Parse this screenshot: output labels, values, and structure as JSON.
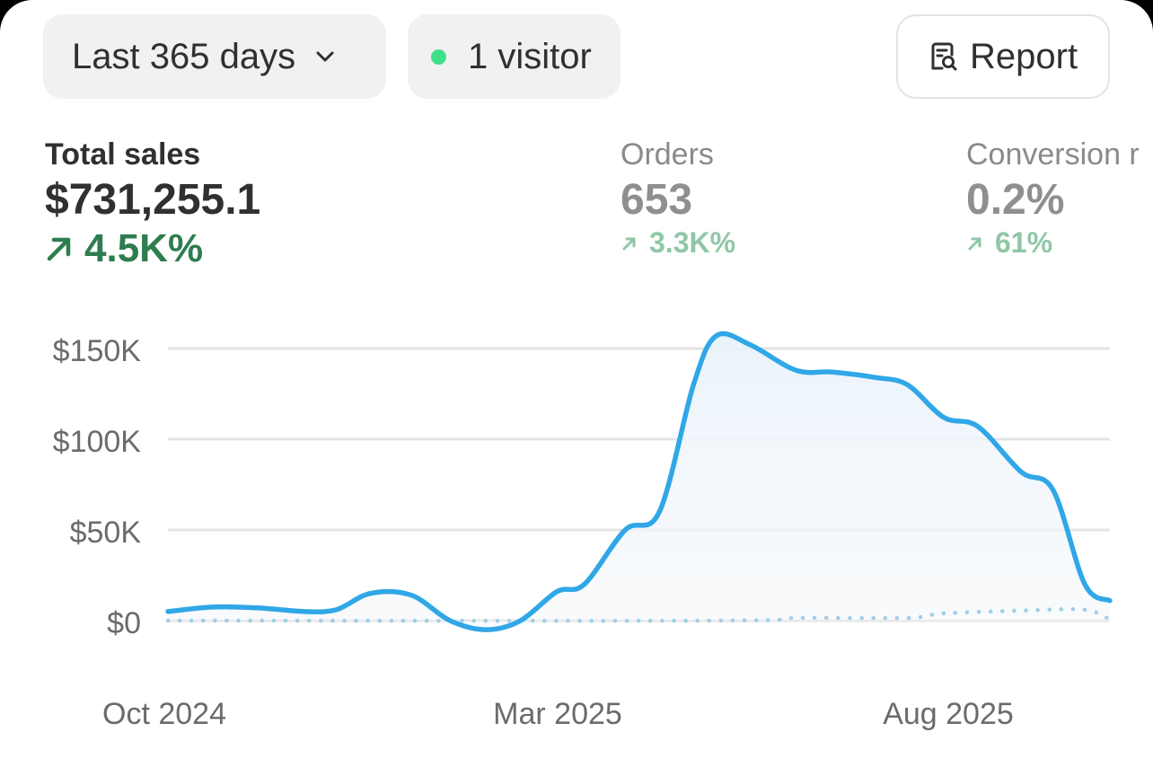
{
  "filters": {
    "date_range_label": "Last 365 days",
    "visitors_label": "1 visitor",
    "report_label": "Report"
  },
  "metrics": [
    {
      "label": "Total sales",
      "value": "$731,255.1",
      "delta": "4.5K%"
    },
    {
      "label": "Orders",
      "value": "653",
      "delta": "3.3K%"
    },
    {
      "label": "Conversion r",
      "value": "0.2%",
      "delta": "61%"
    }
  ],
  "colors": {
    "accent_line": "#30a7e7",
    "live_dot": "#3fe08a",
    "positive": "#2e7d4f",
    "positive_muted": "#8fc7a6",
    "comparison_line": "#9fcfe8"
  },
  "icons": {
    "date": "chevron-down-icon",
    "visitor": "live-dot-icon",
    "report": "report-search-icon",
    "delta": "arrow-up-right-icon"
  },
  "chart_data": {
    "type": "area",
    "x_ticks": [
      "Oct 2024",
      "Mar 2025",
      "Aug 2025"
    ],
    "y_ticks": [
      "$150K",
      "$100K",
      "$50K",
      "$0"
    ],
    "y_tick_values": [
      150000,
      100000,
      50000,
      0
    ],
    "ylim": [
      -8000,
      150000
    ],
    "grid": true,
    "series": [
      {
        "points": [
          [
            "2024-09-12",
            5000
          ],
          [
            "2024-10-02",
            7500
          ],
          [
            "2024-10-22",
            7000
          ],
          [
            "2024-11-11",
            5000
          ],
          [
            "2024-11-25",
            6000
          ],
          [
            "2024-12-10",
            15000
          ],
          [
            "2024-12-28",
            14000
          ],
          [
            "2025-01-14",
            0
          ],
          [
            "2025-01-30",
            -5000
          ],
          [
            "2025-02-14",
            0
          ],
          [
            "2025-03-02",
            16000
          ],
          [
            "2025-03-14",
            20000
          ],
          [
            "2025-04-01",
            50000
          ],
          [
            "2025-04-16",
            60000
          ],
          [
            "2025-05-01",
            130000
          ],
          [
            "2025-05-11",
            157000
          ],
          [
            "2025-05-26",
            152000
          ],
          [
            "2025-06-15",
            138000
          ],
          [
            "2025-07-01",
            137000
          ],
          [
            "2025-07-20",
            134000
          ],
          [
            "2025-08-03",
            130000
          ],
          [
            "2025-08-19",
            112000
          ],
          [
            "2025-09-03",
            107000
          ],
          [
            "2025-09-22",
            82000
          ],
          [
            "2025-10-06",
            72000
          ],
          [
            "2025-10-20",
            20000
          ],
          [
            "2025-10-31",
            11000
          ]
        ]
      },
      {
        "style": "dotted",
        "points": [
          [
            "2024-09-12",
            0
          ],
          [
            "2025-05-11",
            0
          ],
          [
            "2025-06-15",
            1500
          ],
          [
            "2025-08-03",
            1500
          ],
          [
            "2025-08-19",
            4000
          ],
          [
            "2025-09-22",
            5500
          ],
          [
            "2025-10-20",
            6000
          ],
          [
            "2025-10-31",
            500
          ]
        ]
      }
    ]
  }
}
